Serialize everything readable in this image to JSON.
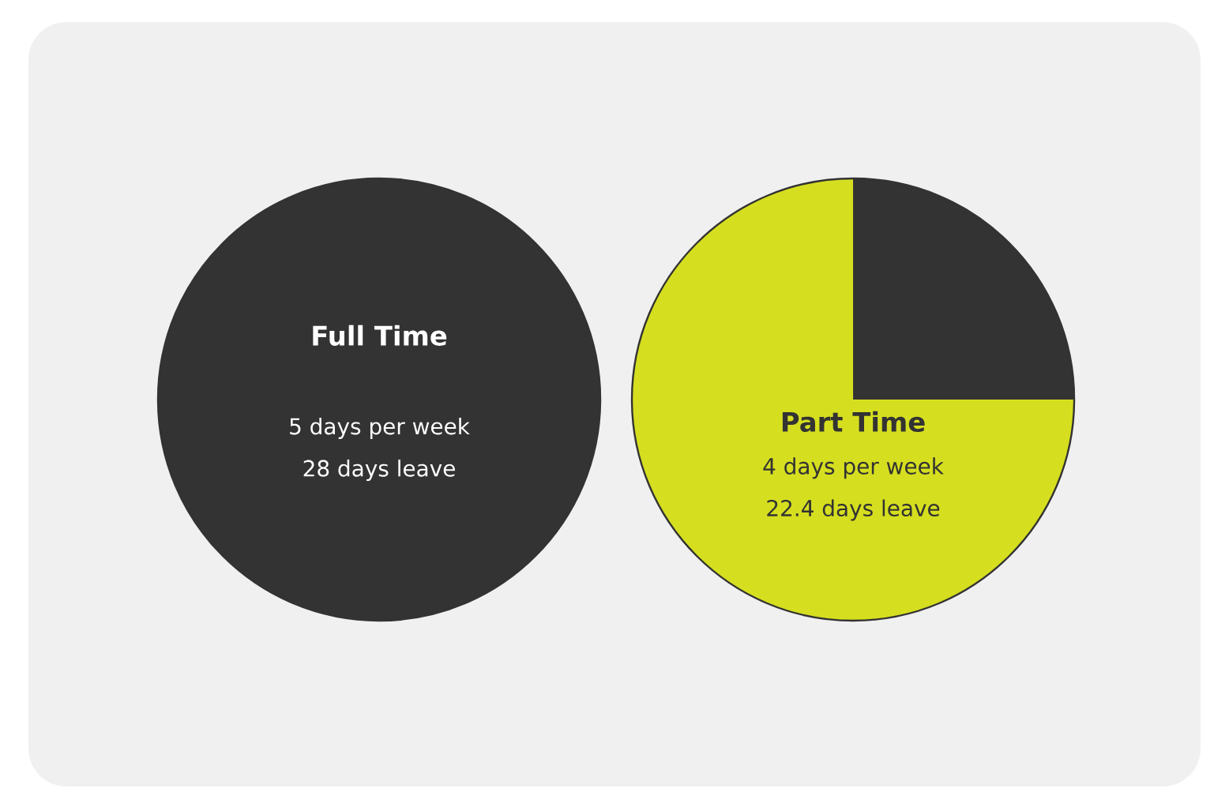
{
  "chart_data": [
    {
      "type": "pie",
      "title": "Full Time",
      "categories": [
        null
      ],
      "values": [
        100
      ],
      "colors": [
        "#333333"
      ],
      "annotations": [
        "5 days per week",
        "28 days leave"
      ]
    },
    {
      "type": "pie",
      "title": "Part Time",
      "categories": [
        null,
        null
      ],
      "values": [
        25,
        75
      ],
      "colors": [
        "#333333",
        "#d6df1f"
      ],
      "annotations": [
        "4 days per week",
        "22.4 days leave"
      ]
    }
  ]
}
